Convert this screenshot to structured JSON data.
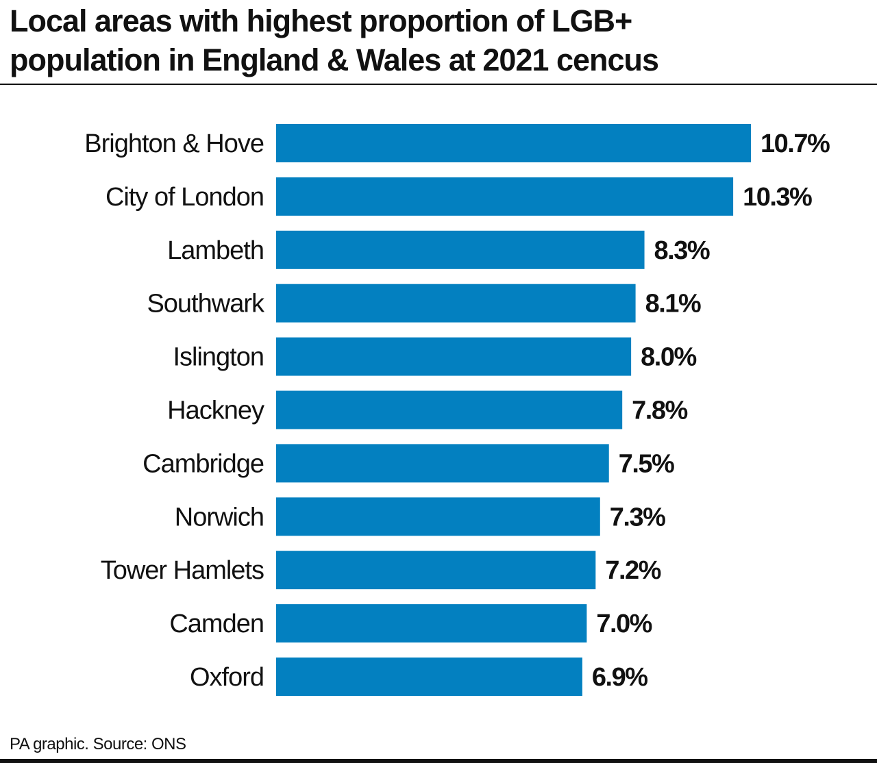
{
  "title": "Local areas with highest proportion of LGB+ population in England & Wales at 2021 cencus",
  "title_lines": [
    "Local areas with highest proportion of LGB+",
    "population in England & Wales at 2021 cencus"
  ],
  "footer": "PA graphic. Source: ONS",
  "chart_data": {
    "type": "bar",
    "orientation": "horizontal",
    "title": "Local areas with highest proportion of LGB+ population in England & Wales at 2021 cencus",
    "categories": [
      "Brighton & Hove",
      "City of London",
      "Lambeth",
      "Southwark",
      "Islington",
      "Hackney",
      "Cambridge",
      "Norwich",
      "Tower Hamlets",
      "Camden",
      "Oxford"
    ],
    "values": [
      10.7,
      10.3,
      8.3,
      8.1,
      8.0,
      7.8,
      7.5,
      7.3,
      7.2,
      7.0,
      6.9
    ],
    "data_labels": [
      "10.7%",
      "10.3%",
      "8.3%",
      "8.1%",
      "8.0%",
      "7.8%",
      "7.5%",
      "7.3%",
      "7.2%",
      "7.0%",
      "6.9%"
    ],
    "xlabel": "",
    "ylabel": "",
    "xlim": [
      0,
      10.7
    ],
    "grid": false,
    "bar_color": "#0380c0"
  }
}
